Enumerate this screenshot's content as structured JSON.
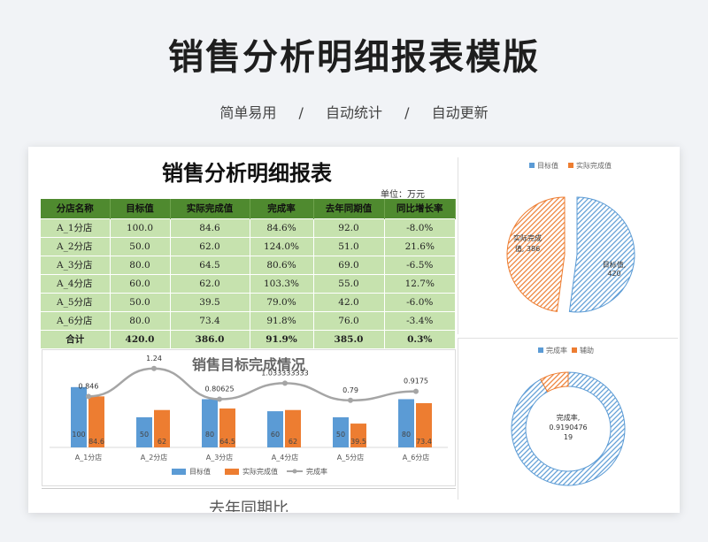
{
  "page": {
    "title": "销售分析明细报表模版",
    "tags": [
      "简单易用",
      "自动统计",
      "自动更新"
    ],
    "separator": "/"
  },
  "report": {
    "title": "销售分析明细报表",
    "unit": "单位：万元",
    "columns": [
      "分店名称",
      "目标值",
      "实际完成值",
      "完成率",
      "去年同期值",
      "同比增长率"
    ],
    "rows": [
      [
        "A_1分店",
        "100.0",
        "84.6",
        "84.6%",
        "92.0",
        "-8.0%"
      ],
      [
        "A_2分店",
        "50.0",
        "62.0",
        "124.0%",
        "51.0",
        "21.6%"
      ],
      [
        "A_3分店",
        "80.0",
        "64.5",
        "80.6%",
        "69.0",
        "-6.5%"
      ],
      [
        "A_4分店",
        "60.0",
        "62.0",
        "103.3%",
        "55.0",
        "12.7%"
      ],
      [
        "A_5分店",
        "50.0",
        "39.5",
        "79.0%",
        "42.0",
        "-6.0%"
      ],
      [
        "A_6分店",
        "80.0",
        "73.4",
        "91.8%",
        "76.0",
        "-3.4%"
      ]
    ],
    "total": [
      "合计",
      "420.0",
      "386.0",
      "91.9%",
      "385.0",
      "0.3%"
    ],
    "next_section_peek": "去年同期比"
  },
  "chart_data": [
    {
      "type": "bar",
      "title": "销售目标完成情况",
      "categories": [
        "A_1分店",
        "A_2分店",
        "A_3分店",
        "A_4分店",
        "A_5分店",
        "A_6分店"
      ],
      "series": [
        {
          "name": "目标值",
          "values": [
            100,
            50,
            80,
            60,
            50,
            80
          ],
          "color": "#5b9bd5"
        },
        {
          "name": "实际完成值",
          "values": [
            84.6,
            62,
            64.5,
            62,
            39.5,
            73.4
          ],
          "color": "#ed7d31"
        },
        {
          "name": "完成率",
          "type": "line",
          "values": [
            0.846,
            1.24,
            0.80625,
            1.033333333,
            0.79,
            0.9175
          ],
          "labels": [
            "0.846",
            "1.24",
            "0.80625",
            "1.033333333",
            "0.79",
            "0.9175"
          ],
          "color": "#a5a5a5"
        }
      ],
      "legend": "bottom"
    },
    {
      "type": "pie",
      "legend": "top",
      "series": [
        {
          "name": "目标值",
          "value": 420,
          "label": "目标值,\n420",
          "color": "#5b9bd5"
        },
        {
          "name": "实际完成值",
          "value": 386,
          "label": "实际完成\n值, 386",
          "color": "#ed7d31"
        }
      ]
    },
    {
      "type": "pie",
      "subtype": "donut",
      "legend": "top",
      "series": [
        {
          "name": "完成率",
          "value": 0.919047619,
          "label": "完成率,\n0.9190476\n19",
          "color": "#5b9bd5"
        },
        {
          "name": "辅助",
          "value": 0.080952381,
          "color": "#ed7d31"
        }
      ]
    }
  ]
}
